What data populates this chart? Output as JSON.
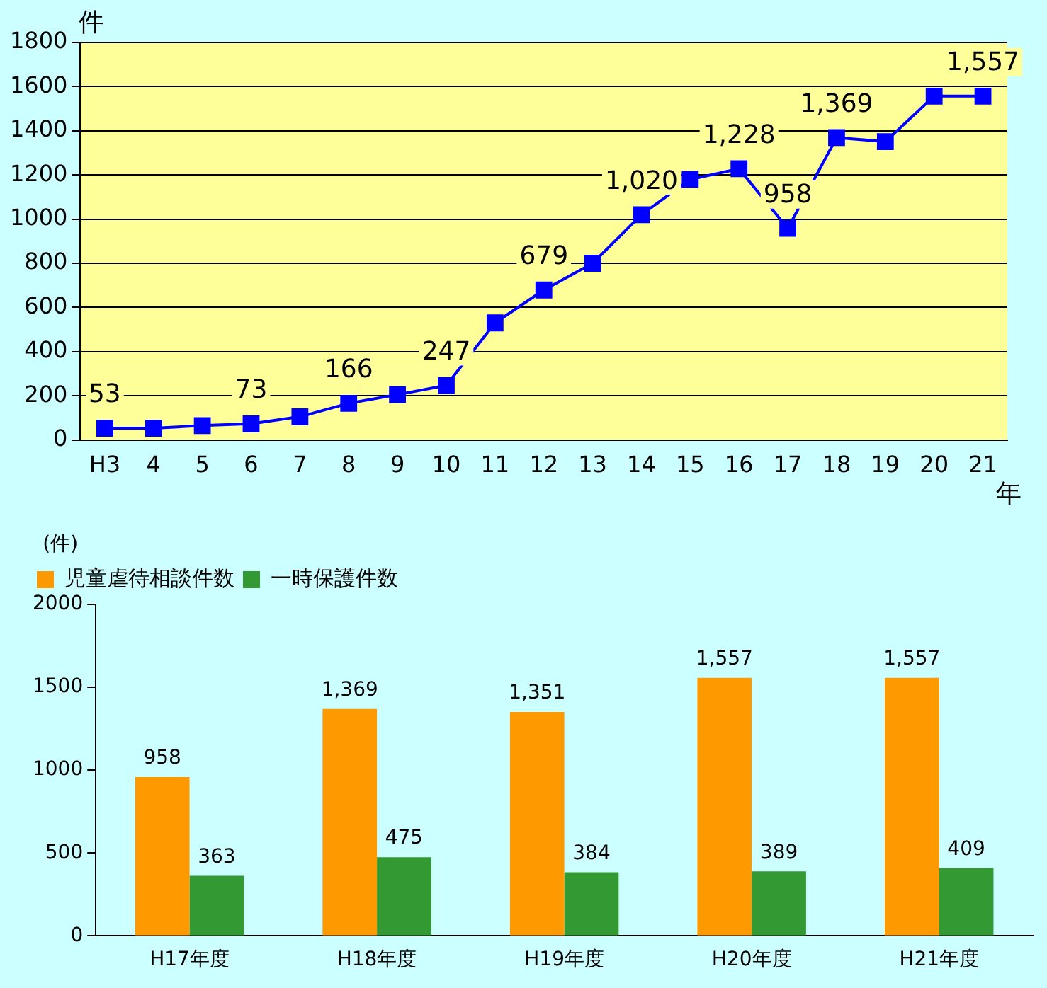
{
  "chart_data": [
    {
      "type": "line",
      "ylabel": "件",
      "xlabel": "年",
      "categories": [
        "H3",
        "4",
        "5",
        "6",
        "7",
        "8",
        "9",
        "10",
        "11",
        "12",
        "13",
        "14",
        "15",
        "16",
        "17",
        "18",
        "19",
        "20",
        "21"
      ],
      "series": [
        {
          "color": "#0000ff",
          "values": [
            53,
            53,
            65,
            73,
            105,
            166,
            205,
            247,
            530,
            679,
            800,
            1020,
            1180,
            1228,
            958,
            1369,
            1351,
            1557,
            1557
          ],
          "value_labels": [
            "53",
            null,
            null,
            "73",
            null,
            "166",
            null,
            "247",
            null,
            "679",
            null,
            "1,020",
            null,
            "1,228",
            "958",
            "1,369",
            null,
            null,
            "1,557"
          ]
        }
      ],
      "ylim": [
        0,
        1800
      ],
      "yticks": [
        0,
        200,
        400,
        600,
        800,
        1000,
        1200,
        1400,
        1600,
        1800
      ],
      "grid": "y",
      "marker": "square"
    },
    {
      "type": "bar",
      "ylabel": "(件)",
      "categories": [
        "H17年度",
        "H18年度",
        "H19年度",
        "H20年度",
        "H21年度"
      ],
      "series": [
        {
          "name": "児童虐待相談件数",
          "color": "#ff9900",
          "values": [
            958,
            1369,
            1351,
            1557,
            1557
          ],
          "value_labels": [
            "958",
            "1,369",
            "1,351",
            "1,557",
            "1,557"
          ]
        },
        {
          "name": "一時保護件数",
          "color": "#339933",
          "values": [
            363,
            475,
            384,
            389,
            409
          ],
          "value_labels": [
            "363",
            "475",
            "384",
            "389",
            "409"
          ]
        }
      ],
      "ylim": [
        0,
        2000
      ],
      "yticks": [
        0,
        500,
        1000,
        1500,
        2000
      ],
      "legend": "top left"
    }
  ]
}
